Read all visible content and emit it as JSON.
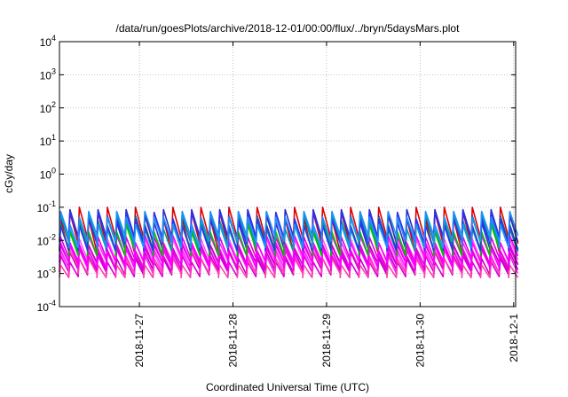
{
  "chart_data": {
    "type": "line",
    "title": "/data/run/goesPlots/archive/2018-12-01/00:00/flux/../bryn/5daysMars.plot",
    "xlabel": "Coordinated Universal Time (UTC)",
    "ylabel": "cGy/day",
    "y_scale": "log",
    "ylim": [
      0.0001,
      10000
    ],
    "y_ticks": [
      {
        "value": 0.0001,
        "base": "10",
        "exp": "-4"
      },
      {
        "value": 0.001,
        "base": "10",
        "exp": "-3"
      },
      {
        "value": 0.01,
        "base": "10",
        "exp": "-2"
      },
      {
        "value": 0.1,
        "base": "10",
        "exp": "-1"
      },
      {
        "value": 1,
        "base": "10",
        "exp": "0"
      },
      {
        "value": 10,
        "base": "10",
        "exp": "1"
      },
      {
        "value": 100,
        "base": "10",
        "exp": "2"
      },
      {
        "value": 1000,
        "base": "10",
        "exp": "3"
      },
      {
        "value": 10000,
        "base": "10",
        "exp": "4"
      }
    ],
    "xlim": [
      "2018-11-26T03:30",
      "2018-12-01T00:30"
    ],
    "x_ticks": [
      "2018-11-27",
      "2018-11-28",
      "2018-11-29",
      "2018-11-30",
      "2018-12-1"
    ],
    "grid": true,
    "legend": "none",
    "sawtooth": {
      "start": "2018-11-26T03:30",
      "period_hours": 2.4,
      "cycles": 49
    },
    "series": [
      {
        "color": "#dd0000",
        "peak": [
          0.045,
          0.07,
          0.1
        ],
        "trough": [
          0.0045,
          0.008,
          0.012
        ]
      },
      {
        "color": "#2c2ccc",
        "peak": [
          0.035,
          0.055,
          0.085
        ],
        "trough": [
          0.0055,
          0.009,
          0.013
        ]
      },
      {
        "color": "#00a0a0",
        "peak": [
          0.022,
          0.04,
          0.06
        ],
        "trough": [
          0.0045,
          0.007,
          0.01
        ]
      },
      {
        "color": "#ff55ff",
        "peak": [
          0.0042,
          0.0065,
          0.011
        ],
        "trough": [
          0.0011,
          0.0016,
          0.0026
        ]
      },
      {
        "color": "#ff22ff",
        "peak": [
          0.0034,
          0.0052,
          0.0085
        ],
        "trough": [
          0.001,
          0.0015,
          0.0024
        ]
      },
      {
        "color": "#c000c0",
        "peak": [
          0.0028,
          0.0044,
          0.0072
        ],
        "trough": [
          0.0009,
          0.0013,
          0.0021
        ]
      },
      {
        "color": "#dd00dd",
        "peak": [
          0.0022,
          0.0034,
          0.0058
        ],
        "trough": [
          0.0008,
          0.0011,
          0.0018
        ]
      },
      {
        "color": "#ff40b0",
        "peak": [
          0.0018,
          0.0028,
          0.0048
        ],
        "trough": [
          0.00075,
          0.001,
          0.0016
        ]
      },
      {
        "color": "#e000e0",
        "peak": [
          0.0048,
          0.0075,
          0.0125
        ],
        "trough": [
          0.0013,
          0.0019,
          0.003
        ]
      },
      {
        "color": "#ff00ff",
        "peak": [
          0.0056,
          0.0085,
          0.014
        ],
        "trough": [
          0.0015,
          0.0022,
          0.0034
        ]
      },
      {
        "color": "#00c000",
        "peak": [
          0.018,
          0.03,
          0.048
        ],
        "trough": [
          0.0035,
          0.0055,
          0.0085
        ]
      },
      {
        "color": "#3030f0",
        "peak": [
          0.028,
          0.045,
          0.07
        ],
        "trough": [
          0.005,
          0.008,
          0.012
        ]
      },
      {
        "color": "#1e90ff",
        "peak": [
          0.03,
          0.05,
          0.075
        ],
        "trough": [
          0.006,
          0.0095,
          0.014
        ]
      }
    ]
  }
}
